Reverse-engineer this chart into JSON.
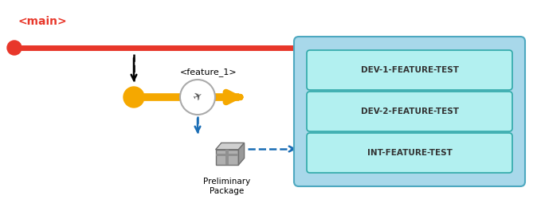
{
  "bg_color": "#ffffff",
  "main_label": "<main>",
  "main_color": "#e8372a",
  "feature_label": "<feature_1>",
  "feature_color": "#f5a800",
  "dashed_color": "#1a6db5",
  "env_box_color": "#a8d8ea",
  "env_box_edge": "#4da8c0",
  "env_inner_color": "#b2f0f0",
  "env_inner_edge": "#2fa8a8",
  "env_labels": [
    "DEV-1-FEATURE-TEST",
    "DEV-2-FEATURE-TEST",
    "INT-FEATURE-TEST"
  ]
}
